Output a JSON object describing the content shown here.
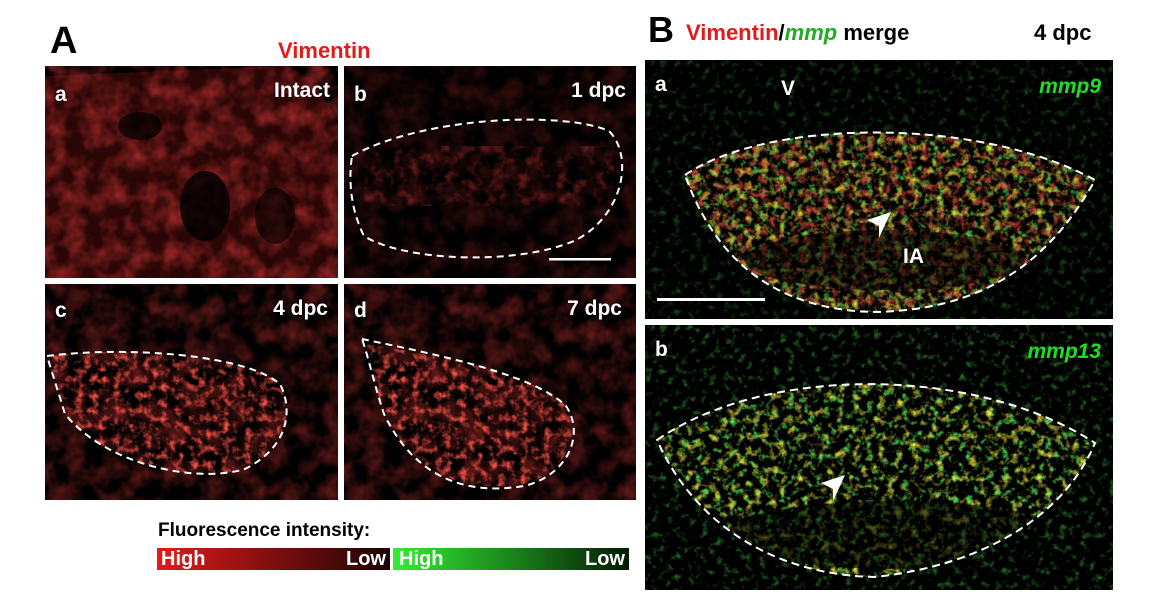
{
  "panel_A": {
    "letter": "A",
    "title": "Vimentin",
    "subpanels": [
      {
        "id": "a",
        "condition": "Intact"
      },
      {
        "id": "b",
        "condition": "1 dpc"
      },
      {
        "id": "c",
        "condition": "4 dpc"
      },
      {
        "id": "d",
        "condition": "7 dpc"
      }
    ]
  },
  "panel_B": {
    "letter": "B",
    "title_red": "Vimentin",
    "title_sep": "/",
    "title_green": "mmp",
    "title_rest": "merge",
    "timepoint": "4 dpc",
    "subpanels": [
      {
        "id": "a",
        "gene": "mmp9",
        "region_v": "V",
        "region_ia": "IA"
      },
      {
        "id": "b",
        "gene": "mmp13"
      }
    ]
  },
  "legend": {
    "title": "Fluorescence intensity:",
    "red_high": "High",
    "red_low": "Low",
    "green_high": "High",
    "green_low": "Low"
  },
  "colors": {
    "red": "#e21a1a",
    "green": "#22dd22",
    "yellow": "#e0e020"
  }
}
